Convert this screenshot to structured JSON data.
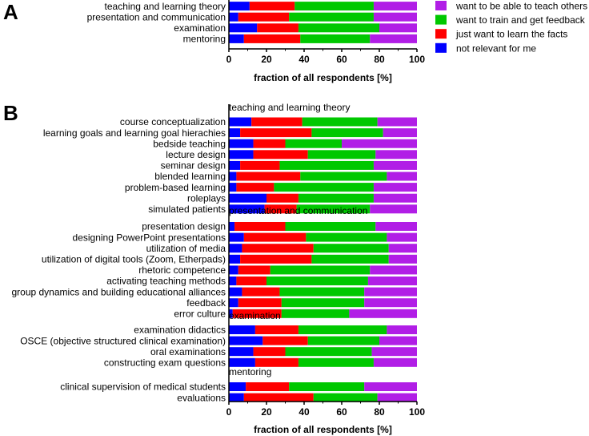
{
  "colors": {
    "not_relevant": "#0000ff",
    "learn_facts": "#ff0000",
    "train_feedback": "#00c800",
    "teach_others": "#b11ee6"
  },
  "legend": [
    {
      "key": "teach_others",
      "label": "want to be able to teach others"
    },
    {
      "key": "train_feedback",
      "label": "want to train and get feedback"
    },
    {
      "key": "learn_facts",
      "label": "just want to learn the facts"
    },
    {
      "key": "not_relevant",
      "label": "not relevant for me"
    }
  ],
  "chart_data": [
    {
      "panel": "A",
      "type": "bar",
      "orientation": "horizontal",
      "stacked": true,
      "xlabel": "fraction of all respondents [%]",
      "xlim": [
        0,
        100
      ],
      "xticks": [
        0,
        20,
        40,
        60,
        80,
        100
      ],
      "series_order": [
        "not_relevant",
        "learn_facts",
        "train_feedback",
        "teach_others"
      ],
      "groups": [
        {
          "title": "",
          "categories": [
            {
              "label": "teaching and learning theory",
              "values": [
                11,
                24,
                42,
                23
              ]
            },
            {
              "label": "presentation and communication",
              "values": [
                5,
                27,
                45,
                23
              ]
            },
            {
              "label": "examination",
              "values": [
                15,
                22,
                43,
                20
              ]
            },
            {
              "label": "mentoring",
              "values": [
                8,
                30,
                37,
                25
              ]
            }
          ]
        }
      ]
    },
    {
      "panel": "B",
      "type": "bar",
      "orientation": "horizontal",
      "stacked": true,
      "xlabel": "fraction of all respondents [%]",
      "xlim": [
        0,
        100
      ],
      "xticks": [
        0,
        20,
        40,
        60,
        80,
        100
      ],
      "series_order": [
        "not_relevant",
        "learn_facts",
        "train_feedback",
        "teach_others"
      ],
      "groups": [
        {
          "title": "teaching and learning theory",
          "categories": [
            {
              "label": "course conceptualization",
              "values": [
                12,
                27,
                40,
                21
              ]
            },
            {
              "label": "learning goals and learning goal hierachies",
              "values": [
                6,
                38,
                38,
                18
              ]
            },
            {
              "label": "bedside teaching",
              "values": [
                13,
                17,
                30,
                40
              ]
            },
            {
              "label": "lecture design",
              "values": [
                13,
                29,
                36,
                22
              ]
            },
            {
              "label": "seminar design",
              "values": [
                6,
                21,
                50,
                23
              ]
            },
            {
              "label": "blended learning",
              "values": [
                4,
                34,
                46,
                16
              ]
            },
            {
              "label": "problem-based learning",
              "values": [
                4,
                20,
                53,
                23
              ]
            },
            {
              "label": "roleplays",
              "values": [
                20,
                17,
                40,
                23
              ]
            },
            {
              "label": "simulated patients",
              "values": [
                19,
                17,
                39,
                25
              ]
            }
          ]
        },
        {
          "title": "presentation and communication",
          "categories": [
            {
              "label": "presentation design",
              "values": [
                3,
                27,
                48,
                22
              ]
            },
            {
              "label": "designing PowerPoint presentations",
              "values": [
                8,
                33,
                43,
                16
              ]
            },
            {
              "label": "utilization of media",
              "values": [
                7,
                38,
                40,
                15
              ]
            },
            {
              "label": "utilization of digital tools (Zoom, Etherpads)",
              "values": [
                6,
                38,
                41,
                15
              ]
            },
            {
              "label": "rhetoric competence",
              "values": [
                5,
                17,
                53,
                25
              ]
            },
            {
              "label": "activating teaching methods",
              "values": [
                4,
                16,
                54,
                26
              ]
            },
            {
              "label": "group dynamics and building educational alliances",
              "values": [
                7,
                20,
                45,
                28
              ]
            },
            {
              "label": "feedback",
              "values": [
                5,
                23,
                44,
                28
              ]
            },
            {
              "label": "error culture",
              "values": [
                2,
                26,
                36,
                36
              ]
            }
          ]
        },
        {
          "title": "examination",
          "categories": [
            {
              "label": "examination didactics",
              "values": [
                14,
                23,
                47,
                16
              ]
            },
            {
              "label": "OSCE (objective structured clinical examination)",
              "values": [
                18,
                24,
                38,
                20
              ]
            },
            {
              "label": "oral examinations",
              "values": [
                13,
                17,
                46,
                24
              ]
            },
            {
              "label": "constructing exam questions",
              "values": [
                14,
                23,
                40,
                23
              ]
            }
          ]
        },
        {
          "title": "mentoring",
          "categories": [
            {
              "label": "clinical supervision of medical students",
              "values": [
                9,
                23,
                40,
                28
              ]
            },
            {
              "label": "evaluations",
              "values": [
                8,
                37,
                34,
                21
              ]
            }
          ]
        }
      ]
    }
  ]
}
